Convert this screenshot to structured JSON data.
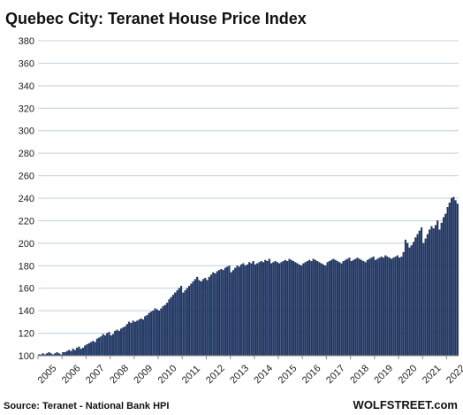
{
  "chart_data": {
    "type": "bar",
    "title": "Quebec City: Teranet House Price Index",
    "source": "Source: Teranet - National Bank HPI",
    "watermark": "WOLFSTREET.com",
    "ylim": [
      100,
      380
    ],
    "yticks": [
      100,
      120,
      140,
      160,
      180,
      200,
      220,
      240,
      260,
      280,
      300,
      320,
      340,
      360,
      380
    ],
    "xtick_labels": [
      "2005",
      "2006",
      "2007",
      "2008",
      "2009",
      "2010",
      "2011",
      "2012",
      "2013",
      "2014",
      "2015",
      "2016",
      "2017",
      "2018",
      "2019",
      "2020",
      "2021",
      "2022"
    ],
    "x_start": "2005-01",
    "grid": true,
    "colors": {
      "bar": "#1f3a6e",
      "bar_edge": "#0e1f45",
      "grid": "#bfcfe0",
      "axis": "#888888"
    },
    "yearly_anchors": {
      "2005": 100,
      "2006": 103,
      "2007": 110,
      "2008": 118,
      "2009": 130,
      "2010": 140,
      "2011": 156,
      "2012": 167,
      "2013": 174,
      "2014": 181,
      "2015": 182,
      "2016": 182,
      "2017": 183,
      "2018": 184,
      "2019": 185,
      "2020": 187,
      "2021": 200,
      "2022": 232
    },
    "values": [
      101,
      101,
      102,
      101,
      102,
      103,
      102,
      101,
      102,
      103,
      102,
      101,
      103,
      103,
      104,
      105,
      104,
      106,
      105,
      107,
      108,
      106,
      107,
      109,
      110,
      111,
      112,
      113,
      112,
      115,
      116,
      117,
      119,
      118,
      120,
      121,
      118,
      119,
      122,
      123,
      122,
      124,
      125,
      126,
      128,
      130,
      129,
      131,
      130,
      131,
      132,
      133,
      132,
      135,
      136,
      138,
      139,
      140,
      142,
      141,
      140,
      142,
      144,
      145,
      147,
      150,
      152,
      154,
      156,
      158,
      160,
      162,
      156,
      158,
      160,
      162,
      164,
      166,
      168,
      170,
      167,
      166,
      168,
      169,
      167,
      170,
      172,
      174,
      173,
      175,
      176,
      177,
      176,
      178,
      179,
      180,
      174,
      176,
      178,
      180,
      179,
      181,
      182,
      180,
      181,
      183,
      182,
      184,
      181,
      182,
      183,
      184,
      183,
      185,
      184,
      186,
      182,
      183,
      184,
      183,
      182,
      183,
      184,
      185,
      184,
      186,
      185,
      184,
      183,
      182,
      181,
      180,
      182,
      183,
      184,
      185,
      184,
      186,
      185,
      184,
      183,
      182,
      181,
      180,
      183,
      184,
      185,
      186,
      185,
      184,
      183,
      182,
      184,
      185,
      186,
      187,
      184,
      185,
      186,
      187,
      186,
      185,
      184,
      183,
      185,
      186,
      187,
      188,
      185,
      186,
      187,
      188,
      187,
      189,
      188,
      187,
      186,
      187,
      188,
      189,
      187,
      188,
      192,
      203,
      200,
      196,
      198,
      201,
      205,
      208,
      211,
      214,
      200,
      204,
      208,
      212,
      215,
      213,
      216,
      220,
      212,
      218,
      223,
      226,
      232,
      236,
      240,
      241,
      238,
      235
    ]
  }
}
